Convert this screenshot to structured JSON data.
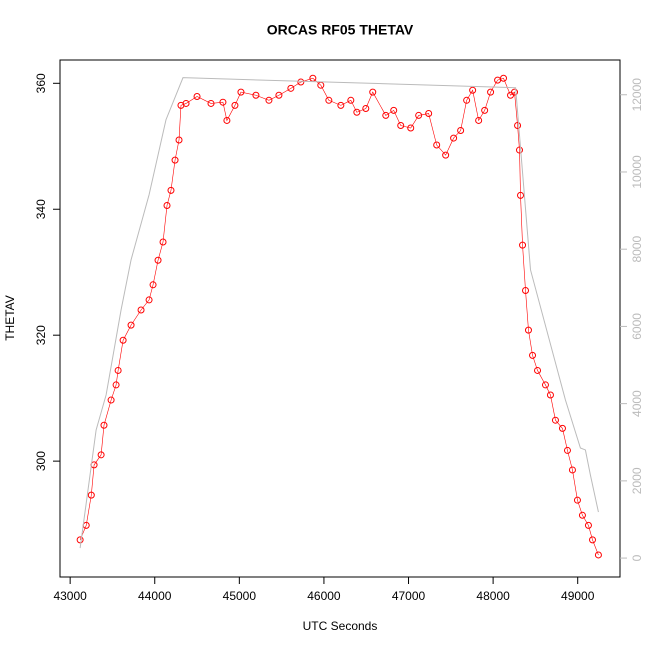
{
  "chart_data": {
    "type": "scatter",
    "title": "ORCAS RF05 THETAV",
    "x_label": "UTC Seconds",
    "y_label": "THETAV",
    "xlim": [
      42880,
      49500
    ],
    "ylim": [
      281.6,
      363.7
    ],
    "y2lim": [
      -490,
      12900
    ],
    "xticks": [
      43000,
      44000,
      45000,
      46000,
      47000,
      48000,
      49000
    ],
    "yticks": [
      300,
      320,
      340,
      360
    ],
    "y2ticks": [
      0,
      2000,
      4000,
      6000,
      8000,
      10000,
      12000
    ],
    "series": [
      {
        "color": "#ff0000",
        "axis": "y",
        "x": [
          43118,
          43190,
          43250,
          43283,
          43366,
          43400,
          43484,
          43543,
          43567,
          43626,
          43720,
          43838,
          43933,
          43980,
          44039,
          44098,
          44145,
          44192,
          44240,
          44287,
          44310,
          44370,
          44500,
          44665,
          44806,
          44853,
          44948,
          45019,
          45196,
          45350,
          45468,
          45609,
          45727,
          45869,
          45963,
          46058,
          46200,
          46318,
          46389,
          46495,
          46577,
          46731,
          46825,
          46908,
          47026,
          47120,
          47238,
          47333,
          47439,
          47533,
          47616,
          47687,
          47758,
          47829,
          47900,
          47970,
          48053,
          48123,
          48206,
          48253,
          48289,
          48312,
          48324,
          48348,
          48383,
          48418,
          48466,
          48525,
          48619,
          48678,
          48737,
          48820,
          48879,
          48938,
          48997,
          49056,
          49127,
          49175,
          49245
        ],
        "values": [
          287.5,
          289.8,
          294.6,
          299.4,
          301,
          305.7,
          309.7,
          312.1,
          314.4,
          319.2,
          321.6,
          324,
          325.6,
          328,
          331.9,
          334.8,
          340.6,
          343,
          347.8,
          351,
          356.5,
          356.8,
          357.9,
          356.8,
          357,
          354.1,
          356.5,
          358.6,
          358.1,
          357.3,
          358.1,
          359.2,
          360.2,
          360.8,
          359.7,
          357.3,
          356.5,
          357.3,
          355.4,
          356,
          358.6,
          354.9,
          355.7,
          353.3,
          352.9,
          354.9,
          355.2,
          350.2,
          348.6,
          351.3,
          352.5,
          357.3,
          358.9,
          354.1,
          355.7,
          358.6,
          360.5,
          360.8,
          358.1,
          358.6,
          353.3,
          349.4,
          342.2,
          334.3,
          327.1,
          320.8,
          316.8,
          314.4,
          312.1,
          310.5,
          306.5,
          305.2,
          301.7,
          298.6,
          293.8,
          291.4,
          289.8,
          287.5,
          285.1
        ]
      },
      {
        "color": "#bbbbbb",
        "axis": "y2",
        "x": [
          43118,
          43307,
          43425,
          43602,
          43720,
          43933,
          44133,
          44334,
          48266,
          48442,
          48855,
          49032,
          49091,
          49150,
          49245
        ],
        "values": [
          259,
          3318,
          4225,
          6428,
          7724,
          9409,
          11353,
          12442,
          12183,
          7465,
          4095,
          2851,
          2800,
          2151,
          1192
        ]
      }
    ]
  }
}
